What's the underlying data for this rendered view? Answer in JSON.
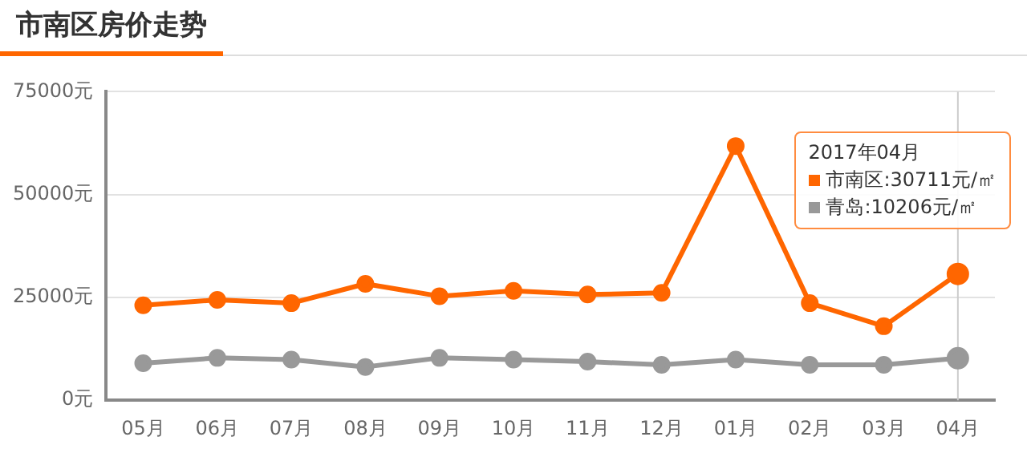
{
  "chart_data": {
    "type": "line",
    "title": "市南区房价走势",
    "categories": [
      "05月",
      "06月",
      "07月",
      "08月",
      "09月",
      "10月",
      "11月",
      "12月",
      "01月",
      "02月",
      "03月",
      "04月"
    ],
    "series": [
      {
        "name": "市南区",
        "color": "#ff6600",
        "values": [
          23100,
          24400,
          23600,
          28300,
          25300,
          26600,
          25700,
          26100,
          61800,
          23600,
          18000,
          30711
        ]
      },
      {
        "name": "青岛",
        "color": "#999999",
        "values": [
          9000,
          10300,
          9900,
          8100,
          10300,
          9900,
          9400,
          8600,
          9900,
          8600,
          8600,
          10206
        ]
      }
    ],
    "annotations": [
      "2017年04月",
      ":30711元/㎡",
      ":10206元/㎡"
    ],
    "ylim": [
      0,
      75000
    ],
    "yticks": [
      {
        "value": 0,
        "label": "0元"
      },
      {
        "value": 25000,
        "label": "25000元"
      },
      {
        "value": 50000,
        "label": "50000元"
      },
      {
        "value": 75000,
        "label": "75000元"
      }
    ],
    "ref_lines": [
      {
        "axis": "x",
        "value": "04月",
        "color": "#cccccc"
      }
    ],
    "grid": "y",
    "legend": "top right",
    "marker": "circle",
    "line_style": "solid"
  }
}
